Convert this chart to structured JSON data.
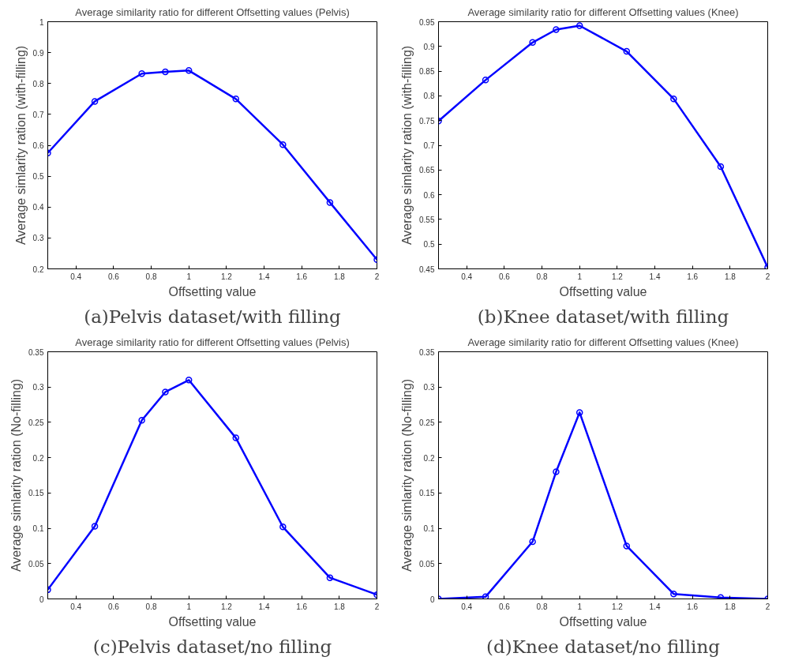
{
  "chart_data": [
    {
      "type": "line",
      "title": "Average similarity ratio for different Offsetting values (Pelvis)",
      "xlabel": "Offsetting value",
      "ylabel": "Average simlarity ration (with-filling)",
      "annotations": [
        "(a)Pelvis dataset/with filling"
      ],
      "x": [
        0.25,
        0.5,
        0.75,
        0.875,
        1,
        1.25,
        1.5,
        1.75,
        2
      ],
      "series": [
        {
          "color": "#0000ff",
          "values": [
            0.575,
            0.742,
            0.832,
            0.838,
            0.842,
            0.75,
            0.602,
            0.415,
            0.23
          ]
        }
      ],
      "xlim": [
        0.25,
        2
      ],
      "ylim": [
        0.2,
        1
      ],
      "xticks": [
        0.4,
        0.6,
        0.8,
        1,
        1.2,
        1.4,
        1.6,
        1.8,
        2
      ],
      "yticks": [
        0.2,
        0.3,
        0.4,
        0.5,
        0.6,
        0.7,
        0.8,
        0.9,
        1
      ],
      "grid": false,
      "marker": "circle",
      "line_style": "solid"
    },
    {
      "type": "line",
      "title": "Average similarity ratio for different Offsetting values (Knee)",
      "xlabel": "Offsetting value",
      "ylabel": "Average simlarity ration (with-filling)",
      "annotations": [
        "(b)Knee dataset/with filling"
      ],
      "x": [
        0.25,
        0.5,
        0.75,
        0.875,
        1,
        1.25,
        1.5,
        1.75,
        2
      ],
      "series": [
        {
          "color": "#0000ff",
          "values": [
            0.749,
            0.832,
            0.908,
            0.934,
            0.942,
            0.89,
            0.794,
            0.657,
            0.453
          ]
        }
      ],
      "xlim": [
        0.25,
        2
      ],
      "ylim": [
        0.45,
        0.95
      ],
      "xticks": [
        0.4,
        0.6,
        0.8,
        1,
        1.2,
        1.4,
        1.6,
        1.8,
        2
      ],
      "yticks": [
        0.45,
        0.5,
        0.55,
        0.6,
        0.65,
        0.7,
        0.75,
        0.8,
        0.85,
        0.9,
        0.95
      ],
      "grid": false,
      "marker": "circle",
      "line_style": "solid"
    },
    {
      "type": "line",
      "title": "Average similarity ratio for different Offsetting values (Pelvis)",
      "xlabel": "Offsetting value",
      "ylabel": "Average simlarity ration (No-filling)",
      "annotations": [
        "(c)Pelvis dataset/no filling"
      ],
      "x": [
        0.25,
        0.5,
        0.75,
        0.875,
        1,
        1.25,
        1.5,
        1.75,
        2
      ],
      "series": [
        {
          "color": "#0000ff",
          "values": [
            0.013,
            0.103,
            0.253,
            0.293,
            0.31,
            0.228,
            0.102,
            0.03,
            0.006
          ]
        }
      ],
      "xlim": [
        0.25,
        2
      ],
      "ylim": [
        0,
        0.35
      ],
      "xticks": [
        0.4,
        0.6,
        0.8,
        1,
        1.2,
        1.4,
        1.6,
        1.8,
        2
      ],
      "yticks": [
        0,
        0.05,
        0.1,
        0.15,
        0.2,
        0.25,
        0.3,
        0.35
      ],
      "grid": false,
      "marker": "circle",
      "line_style": "solid"
    },
    {
      "type": "line",
      "title": "Average similarity ratio for different Offsetting values (Knee)",
      "xlabel": "Offsetting value",
      "ylabel": "Average simlarity ration (No-filling)",
      "annotations": [
        "(d)Knee dataset/no filling"
      ],
      "x": [
        0.25,
        0.5,
        0.75,
        0.875,
        1,
        1.25,
        1.5,
        1.75,
        2
      ],
      "series": [
        {
          "color": "#0000ff",
          "values": [
            0.0,
            0.003,
            0.081,
            0.18,
            0.264,
            0.075,
            0.007,
            0.002,
            0.0
          ]
        }
      ],
      "xlim": [
        0.25,
        2
      ],
      "ylim": [
        0,
        0.35
      ],
      "xticks": [
        0.4,
        0.6,
        0.8,
        1,
        1.2,
        1.4,
        1.6,
        1.8,
        2
      ],
      "yticks": [
        0,
        0.05,
        0.1,
        0.15,
        0.2,
        0.25,
        0.3,
        0.35
      ],
      "grid": false,
      "marker": "circle",
      "line_style": "solid"
    }
  ]
}
